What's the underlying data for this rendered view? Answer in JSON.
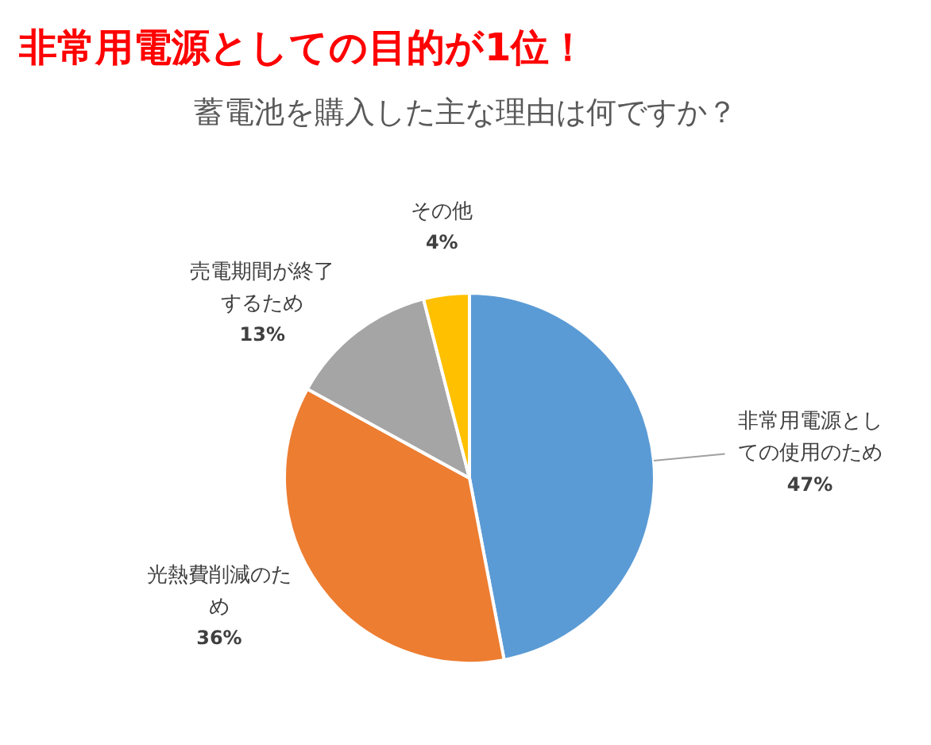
{
  "chart_data": {
    "type": "pie",
    "title": "非常用電源としての目的が1位！",
    "subtitle": "蓄電池を購入した主な理由は何ですか？",
    "categories": [
      "非常用電源としての使用のため",
      "光熱費削減のため",
      "売電期間が終了するため",
      "その他"
    ],
    "values": [
      47,
      36,
      13,
      4
    ],
    "value_labels": [
      "47%",
      "36%",
      "13%",
      "4%"
    ],
    "colors": [
      "#5b9bd5",
      "#ed7d31",
      "#a5a5a5",
      "#ffc000"
    ],
    "legend": false
  }
}
